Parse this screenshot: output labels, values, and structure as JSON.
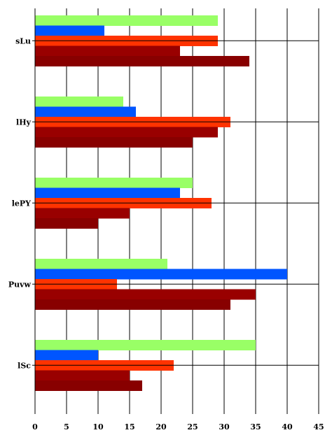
{
  "chart_data": {
    "type": "bar",
    "orientation": "horizontal",
    "categories": [
      "sLu",
      "lHy",
      "lePY",
      "Puvw",
      "lSc"
    ],
    "series": [
      {
        "color": "#99ff66",
        "values": [
          29,
          14,
          25,
          21,
          35
        ]
      },
      {
        "color": "#0055ff",
        "values": [
          11,
          16,
          23,
          40,
          10
        ]
      },
      {
        "color": "#ff3300",
        "values": [
          29,
          31,
          28,
          13,
          22
        ]
      },
      {
        "color": "#990000",
        "values": [
          23,
          29,
          15,
          35,
          15
        ]
      },
      {
        "color": "#880000",
        "values": [
          34,
          25,
          10,
          31,
          17
        ]
      }
    ],
    "xlim": [
      0,
      45
    ],
    "xticks": [
      0,
      5,
      10,
      15,
      20,
      25,
      30,
      35,
      40,
      45
    ],
    "tick_labels": [
      "0",
      "5",
      "10",
      "15",
      "20",
      "25",
      "30",
      "35",
      "40",
      "45"
    ],
    "grid": true,
    "title": "",
    "xlabel": "",
    "ylabel": ""
  }
}
